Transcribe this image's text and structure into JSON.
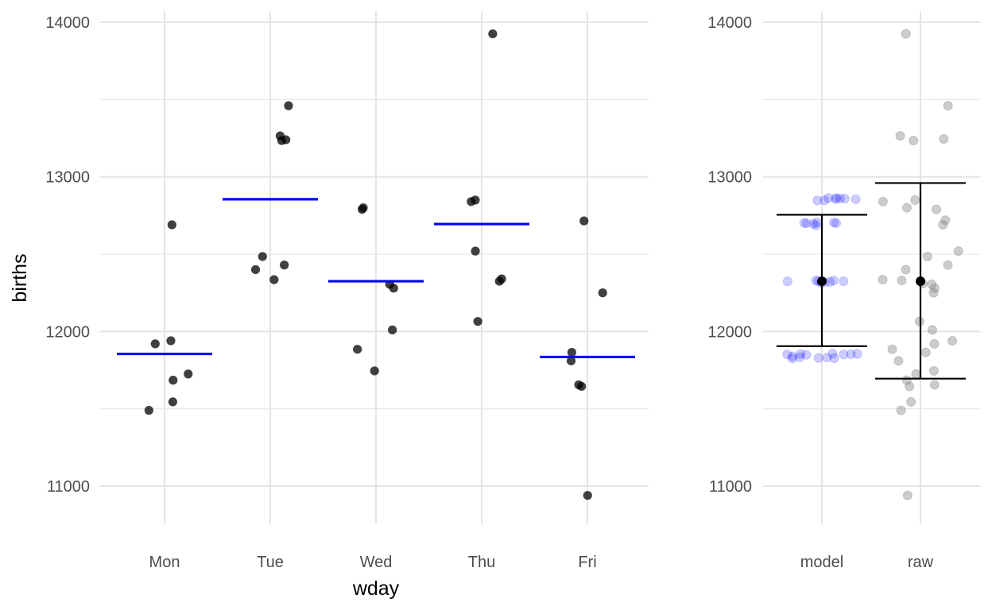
{
  "colors": {
    "point": "#000000",
    "mean_line": "#0000ff",
    "model_points": "#0000ff",
    "raw_points": "#808080",
    "grid": "#e5e5e5",
    "tick_text": "#4d4d4d"
  },
  "chart_data": [
    {
      "type": "scatter",
      "title": "",
      "xlabel": "wday",
      "ylabel": "births",
      "ylim": [
        10830,
        14080
      ],
      "yticks": [
        11000,
        12000,
        13000,
        14000
      ],
      "categories": [
        "Mon",
        "Tue",
        "Wed",
        "Thu",
        "Fri"
      ],
      "grid": true,
      "points": [
        {
          "x": "Mon",
          "y": 12690
        },
        {
          "x": "Mon",
          "y": 11920
        },
        {
          "x": "Mon",
          "y": 11940
        },
        {
          "x": "Mon",
          "y": 11725
        },
        {
          "x": "Mon",
          "y": 11685
        },
        {
          "x": "Mon",
          "y": 11545
        },
        {
          "x": "Mon",
          "y": 11490
        },
        {
          "x": "Tue",
          "y": 13460
        },
        {
          "x": "Tue",
          "y": 13265
        },
        {
          "x": "Tue",
          "y": 13240
        },
        {
          "x": "Tue",
          "y": 13235
        },
        {
          "x": "Tue",
          "y": 12485
        },
        {
          "x": "Tue",
          "y": 12430
        },
        {
          "x": "Tue",
          "y": 12400
        },
        {
          "x": "Tue",
          "y": 12335
        },
        {
          "x": "Wed",
          "y": 12800
        },
        {
          "x": "Wed",
          "y": 12790
        },
        {
          "x": "Wed",
          "y": 12305
        },
        {
          "x": "Wed",
          "y": 12280
        },
        {
          "x": "Wed",
          "y": 12010
        },
        {
          "x": "Wed",
          "y": 11885
        },
        {
          "x": "Wed",
          "y": 11745
        },
        {
          "x": "Thu",
          "y": 13925
        },
        {
          "x": "Thu",
          "y": 12850
        },
        {
          "x": "Thu",
          "y": 12840
        },
        {
          "x": "Thu",
          "y": 12520
        },
        {
          "x": "Thu",
          "y": 12340
        },
        {
          "x": "Thu",
          "y": 12325
        },
        {
          "x": "Thu",
          "y": 12065
        },
        {
          "x": "Fri",
          "y": 12715
        },
        {
          "x": "Fri",
          "y": 12250
        },
        {
          "x": "Fri",
          "y": 11865
        },
        {
          "x": "Fri",
          "y": 11810
        },
        {
          "x": "Fri",
          "y": 11655
        },
        {
          "x": "Fri",
          "y": 11645
        },
        {
          "x": "Fri",
          "y": 10940
        }
      ],
      "series": [
        {
          "type": "segment",
          "values": [
            11855,
            12855,
            12325,
            12695,
            11835
          ]
        }
      ]
    },
    {
      "type": "scatter",
      "title": "",
      "xlabel": "",
      "ylabel": "",
      "ylim": [
        10830,
        14080
      ],
      "yticks": [
        11000,
        12000,
        13000,
        14000
      ],
      "categories": [
        "model",
        "raw"
      ],
      "grid": true,
      "model_points": [
        12855,
        12855,
        12855,
        12855,
        12855,
        12855,
        12855,
        12855,
        12695,
        12695,
        12695,
        12695,
        12695,
        12695,
        12695,
        12325,
        12325,
        12325,
        12325,
        12325,
        12325,
        12325,
        12325,
        11855,
        11855,
        11855,
        11855,
        11855,
        11855,
        11855,
        11835,
        11835,
        11835,
        11835,
        11835,
        11835
      ],
      "raw_points": [
        13925,
        13460,
        13265,
        13245,
        13235,
        12850,
        12840,
        12800,
        12790,
        12720,
        12690,
        12520,
        12485,
        12430,
        12400,
        12335,
        12330,
        12310,
        12305,
        12280,
        12250,
        12065,
        12010,
        11940,
        11920,
        11885,
        11865,
        11810,
        11745,
        11725,
        11685,
        11655,
        11645,
        11545,
        11490,
        10940
      ],
      "summary": [
        {
          "category": "model",
          "mean": 12325,
          "lower": 11905,
          "upper": 12755
        },
        {
          "category": "raw",
          "mean": 12325,
          "lower": 11695,
          "upper": 12960
        }
      ]
    }
  ]
}
